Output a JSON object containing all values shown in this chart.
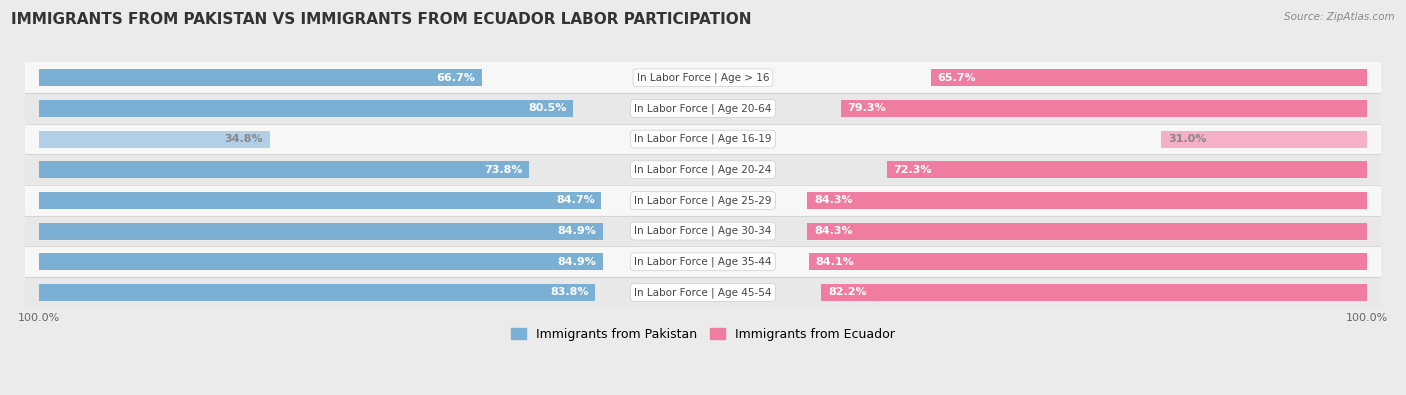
{
  "title": "IMMIGRANTS FROM PAKISTAN VS IMMIGRANTS FROM ECUADOR LABOR PARTICIPATION",
  "source": "Source: ZipAtlas.com",
  "categories": [
    "In Labor Force | Age > 16",
    "In Labor Force | Age 20-64",
    "In Labor Force | Age 16-19",
    "In Labor Force | Age 20-24",
    "In Labor Force | Age 25-29",
    "In Labor Force | Age 30-34",
    "In Labor Force | Age 35-44",
    "In Labor Force | Age 45-54"
  ],
  "pakistan_values": [
    66.7,
    80.5,
    34.8,
    73.8,
    84.7,
    84.9,
    84.9,
    83.8
  ],
  "ecuador_values": [
    65.7,
    79.3,
    31.0,
    72.3,
    84.3,
    84.3,
    84.1,
    82.2
  ],
  "pakistan_color": "#7bafd4",
  "pakistan_color_light": "#b3cfe8",
  "ecuador_color": "#f07ca0",
  "ecuador_color_light": "#f5b0c8",
  "bg_color": "#ebebeb",
  "row_bg_even": "#f7f7f7",
  "row_bg_odd": "#e8e8e8",
  "label_fontsize": 7.5,
  "value_fontsize": 8.0,
  "title_fontsize": 11,
  "legend_fontsize": 9,
  "max_value": 100.0,
  "legend_pakistan": "Immigrants from Pakistan",
  "legend_ecuador": "Immigrants from Ecuador",
  "light_row_index": 2
}
